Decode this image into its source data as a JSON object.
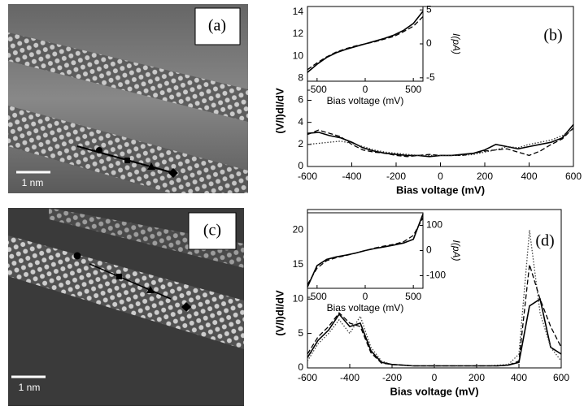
{
  "images": [
    {
      "label": "(a)",
      "scale_bar": "1 nm"
    },
    {
      "label": "(c)",
      "scale_bar": "1 nm"
    }
  ],
  "chart_data": [
    {
      "type": "line",
      "title": "(b)",
      "xlabel": "Bias voltage (mV)",
      "ylabel": "(V/I)dI/dV",
      "x": [
        -600,
        -550,
        -500,
        -450,
        -400,
        -350,
        -300,
        -250,
        -200,
        -150,
        -100,
        -50,
        0,
        50,
        100,
        150,
        200,
        250,
        300,
        350,
        400,
        450,
        500,
        550,
        600
      ],
      "xlim": [
        -600,
        600
      ],
      "xticks": [
        -600,
        -400,
        -200,
        0,
        200,
        400,
        600
      ],
      "ylim": [
        0,
        14.5
      ],
      "yticks": [
        0,
        2,
        4,
        6,
        8,
        10,
        12,
        14
      ],
      "series": [
        {
          "color": "#000000",
          "dash": "solid",
          "values": [
            3.0,
            3.1,
            2.8,
            2.6,
            2.2,
            1.7,
            1.4,
            1.2,
            1.1,
            1.0,
            1.0,
            0.9,
            1.0,
            1.0,
            1.1,
            1.2,
            1.5,
            2.0,
            1.8,
            1.6,
            1.8,
            2.0,
            2.2,
            2.6,
            3.8
          ]
        },
        {
          "color": "#000000",
          "dash": "dashed",
          "values": [
            2.9,
            3.3,
            3.0,
            2.7,
            2.0,
            1.5,
            1.3,
            1.2,
            1.0,
            0.9,
            1.0,
            1.1,
            1.0,
            1.0,
            1.0,
            1.2,
            1.4,
            1.5,
            1.6,
            1.3,
            1.0,
            1.4,
            2.0,
            2.5,
            3.5
          ]
        },
        {
          "color": "#333333",
          "dash": "dotted",
          "values": [
            2.0,
            2.1,
            2.2,
            2.3,
            2.1,
            1.8,
            1.5,
            1.3,
            1.2,
            1.1,
            1.0,
            1.0,
            1.0,
            1.0,
            1.0,
            1.1,
            1.3,
            1.5,
            1.8,
            1.7,
            2.0,
            2.2,
            2.4,
            2.8,
            3.4
          ]
        }
      ],
      "inset": {
        "type": "line",
        "xlabel": "Bias voltage (mV)",
        "y2label": "I(pA)",
        "x": [
          -600,
          -500,
          -400,
          -300,
          -200,
          -100,
          0,
          100,
          200,
          300,
          400,
          500,
          600
        ],
        "xlim": [
          -600,
          600
        ],
        "xticks": [
          -500,
          0,
          500
        ],
        "y2lim": [
          -5.5,
          5.5
        ],
        "y2ticks": [
          -5,
          0,
          5
        ],
        "series": [
          {
            "axis": "y2",
            "color": "#000000",
            "dash": "solid",
            "values": [
              -4.2,
              -3,
              -2,
              -1.3,
              -0.8,
              -0.4,
              0,
              0.4,
              0.8,
              1.3,
              2,
              3,
              4.8
            ]
          },
          {
            "axis": "y2",
            "color": "#000000",
            "dash": "dashed",
            "values": [
              -3.8,
              -2.8,
              -1.9,
              -1.2,
              -0.7,
              -0.3,
              0,
              0.3,
              0.7,
              1.1,
              1.8,
              2.6,
              4.0
            ]
          }
        ]
      }
    },
    {
      "type": "line",
      "title": "(d)",
      "xlabel": "Bias voltage (mV)",
      "ylabel": "(V/I)dI/dV",
      "x": [
        -600,
        -550,
        -500,
        -450,
        -400,
        -350,
        -300,
        -250,
        -200,
        -150,
        -100,
        -50,
        0,
        50,
        100,
        150,
        200,
        250,
        300,
        350,
        400,
        450,
        500,
        550,
        600
      ],
      "xlim": [
        -600,
        600
      ],
      "xticks": [
        -600,
        -400,
        -200,
        0,
        200,
        400,
        600
      ],
      "ylim": [
        0,
        23
      ],
      "yticks": [
        0,
        5,
        10,
        15,
        20
      ],
      "series": [
        {
          "color": "#000000",
          "dash": "solid",
          "values": [
            1.5,
            4,
            5.5,
            7.8,
            6,
            6.5,
            2.5,
            0.8,
            0.5,
            0.4,
            0.3,
            0.3,
            0.3,
            0.3,
            0.3,
            0.3,
            0.3,
            0.3,
            0.3,
            0.4,
            0.8,
            9,
            10,
            3,
            2
          ]
        },
        {
          "color": "#444444",
          "dash": "dotted",
          "values": [
            1,
            3.5,
            5,
            7,
            5,
            7.5,
            3,
            1,
            0.5,
            0.4,
            0.3,
            0.3,
            0.3,
            0.3,
            0.3,
            0.3,
            0.3,
            0.3,
            0.4,
            0.5,
            2,
            20,
            8,
            3,
            1
          ]
        },
        {
          "color": "#000000",
          "dash": "dashed",
          "values": [
            2,
            4.5,
            6,
            8,
            6.5,
            6,
            2.2,
            0.7,
            0.5,
            0.4,
            0.3,
            0.3,
            0.3,
            0.3,
            0.3,
            0.3,
            0.3,
            0.3,
            0.3,
            0.4,
            1,
            15,
            10,
            6,
            3
          ]
        }
      ],
      "inset": {
        "type": "line",
        "xlabel": "Bias voltage (mV)",
        "y2label": "I(pA)",
        "x": [
          -600,
          -500,
          -400,
          -300,
          -200,
          -100,
          0,
          100,
          200,
          300,
          400,
          500,
          600
        ],
        "xlim": [
          -600,
          600
        ],
        "xticks": [
          -500,
          0,
          500
        ],
        "y2lim": [
          -150,
          150
        ],
        "y2ticks": [
          -100,
          0,
          100
        ],
        "series": [
          {
            "axis": "y2",
            "color": "#000000",
            "dash": "solid",
            "values": [
              -145,
              -60,
              -35,
              -25,
              -18,
              -10,
              0,
              8,
              15,
              22,
              30,
              45,
              145
            ]
          },
          {
            "axis": "y2",
            "color": "#000000",
            "dash": "dashed",
            "values": [
              -135,
              -70,
              -40,
              -28,
              -20,
              -10,
              0,
              10,
              18,
              25,
              35,
              60,
              130
            ]
          }
        ]
      }
    }
  ]
}
